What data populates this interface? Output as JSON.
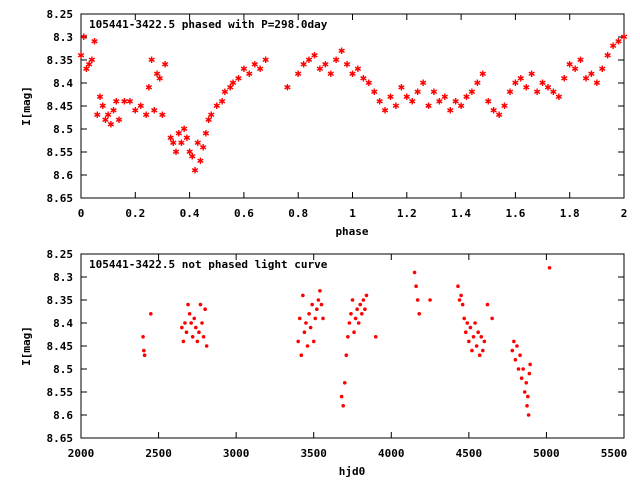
{
  "chart_data": [
    {
      "type": "scatter",
      "title": "105441-3422.5 phased with P=298.0day",
      "xlabel": "phase",
      "ylabel": "I[mag]",
      "xlim": [
        0,
        2
      ],
      "ylim": [
        8.25,
        8.65
      ],
      "y_inverted": true,
      "grid": false,
      "legend": "none",
      "marker": "star",
      "color": "#ff0000",
      "xticks": [
        "0",
        "0.2",
        "0.4",
        "0.6",
        "0.8",
        "1",
        "1.2",
        "1.4",
        "1.6",
        "1.8",
        "2"
      ],
      "yticks": [
        "8.25",
        "8.3",
        "8.35",
        "8.4",
        "8.45",
        "8.5",
        "8.55",
        "8.6",
        "8.65"
      ],
      "points": [
        [
          0.0,
          8.34
        ],
        [
          0.01,
          8.3
        ],
        [
          0.02,
          8.37
        ],
        [
          0.03,
          8.36
        ],
        [
          0.04,
          8.35
        ],
        [
          0.05,
          8.31
        ],
        [
          0.06,
          8.47
        ],
        [
          0.07,
          8.43
        ],
        [
          0.08,
          8.45
        ],
        [
          0.09,
          8.48
        ],
        [
          0.1,
          8.47
        ],
        [
          0.11,
          8.49
        ],
        [
          0.12,
          8.46
        ],
        [
          0.13,
          8.44
        ],
        [
          0.14,
          8.48
        ],
        [
          0.16,
          8.44
        ],
        [
          0.18,
          8.44
        ],
        [
          0.2,
          8.46
        ],
        [
          0.22,
          8.45
        ],
        [
          0.24,
          8.47
        ],
        [
          0.25,
          8.41
        ],
        [
          0.26,
          8.35
        ],
        [
          0.27,
          8.46
        ],
        [
          0.28,
          8.38
        ],
        [
          0.29,
          8.39
        ],
        [
          0.3,
          8.47
        ],
        [
          0.31,
          8.36
        ],
        [
          0.33,
          8.52
        ],
        [
          0.34,
          8.53
        ],
        [
          0.35,
          8.55
        ],
        [
          0.36,
          8.51
        ],
        [
          0.37,
          8.53
        ],
        [
          0.38,
          8.5
        ],
        [
          0.39,
          8.52
        ],
        [
          0.4,
          8.55
        ],
        [
          0.41,
          8.56
        ],
        [
          0.42,
          8.59
        ],
        [
          0.43,
          8.53
        ],
        [
          0.44,
          8.57
        ],
        [
          0.45,
          8.54
        ],
        [
          0.46,
          8.51
        ],
        [
          0.47,
          8.48
        ],
        [
          0.48,
          8.47
        ],
        [
          0.5,
          8.45
        ],
        [
          0.52,
          8.44
        ],
        [
          0.53,
          8.42
        ],
        [
          0.55,
          8.41
        ],
        [
          0.56,
          8.4
        ],
        [
          0.58,
          8.39
        ],
        [
          0.6,
          8.37
        ],
        [
          0.62,
          8.38
        ],
        [
          0.64,
          8.36
        ],
        [
          0.66,
          8.37
        ],
        [
          0.68,
          8.35
        ],
        [
          0.76,
          8.41
        ],
        [
          0.8,
          8.38
        ],
        [
          0.82,
          8.36
        ],
        [
          0.84,
          8.35
        ],
        [
          0.86,
          8.34
        ],
        [
          0.88,
          8.37
        ],
        [
          0.9,
          8.36
        ],
        [
          0.92,
          8.38
        ],
        [
          0.94,
          8.35
        ],
        [
          0.96,
          8.33
        ],
        [
          0.98,
          8.36
        ],
        [
          1.0,
          8.38
        ],
        [
          1.02,
          8.37
        ],
        [
          1.04,
          8.39
        ],
        [
          1.06,
          8.4
        ],
        [
          1.08,
          8.42
        ],
        [
          1.1,
          8.44
        ],
        [
          1.12,
          8.46
        ],
        [
          1.14,
          8.43
        ],
        [
          1.16,
          8.45
        ],
        [
          1.18,
          8.41
        ],
        [
          1.2,
          8.43
        ],
        [
          1.22,
          8.44
        ],
        [
          1.24,
          8.42
        ],
        [
          1.26,
          8.4
        ],
        [
          1.28,
          8.45
        ],
        [
          1.3,
          8.42
        ],
        [
          1.32,
          8.44
        ],
        [
          1.34,
          8.43
        ],
        [
          1.36,
          8.46
        ],
        [
          1.38,
          8.44
        ],
        [
          1.4,
          8.45
        ],
        [
          1.42,
          8.43
        ],
        [
          1.44,
          8.42
        ],
        [
          1.46,
          8.4
        ],
        [
          1.48,
          8.38
        ],
        [
          1.5,
          8.44
        ],
        [
          1.52,
          8.46
        ],
        [
          1.54,
          8.47
        ],
        [
          1.56,
          8.45
        ],
        [
          1.58,
          8.42
        ],
        [
          1.6,
          8.4
        ],
        [
          1.62,
          8.39
        ],
        [
          1.64,
          8.41
        ],
        [
          1.66,
          8.38
        ],
        [
          1.68,
          8.42
        ],
        [
          1.7,
          8.4
        ],
        [
          1.72,
          8.41
        ],
        [
          1.74,
          8.42
        ],
        [
          1.76,
          8.43
        ],
        [
          1.78,
          8.39
        ],
        [
          1.8,
          8.36
        ],
        [
          1.82,
          8.37
        ],
        [
          1.84,
          8.35
        ],
        [
          1.86,
          8.39
        ],
        [
          1.88,
          8.38
        ],
        [
          1.9,
          8.4
        ],
        [
          1.92,
          8.37
        ],
        [
          1.94,
          8.34
        ],
        [
          1.96,
          8.32
        ],
        [
          1.98,
          8.31
        ],
        [
          2.0,
          8.3
        ]
      ]
    },
    {
      "type": "scatter",
      "title": "105441-3422.5 not phased light curve",
      "xlabel": "hjd0",
      "ylabel": "I[mag]",
      "xlim": [
        2000,
        5500
      ],
      "ylim": [
        8.25,
        8.65
      ],
      "y_inverted": true,
      "grid": false,
      "legend": "none",
      "marker": "dot",
      "color": "#ff0000",
      "xticks": [
        "2000",
        "2500",
        "3000",
        "3500",
        "4000",
        "4500",
        "5000",
        "5500"
      ],
      "yticks": [
        "8.25",
        "8.3",
        "8.35",
        "8.4",
        "8.45",
        "8.5",
        "8.55",
        "8.6",
        "8.65"
      ],
      "points": [
        [
          2400,
          8.43
        ],
        [
          2405,
          8.46
        ],
        [
          2410,
          8.47
        ],
        [
          2450,
          8.38
        ],
        [
          2650,
          8.41
        ],
        [
          2660,
          8.44
        ],
        [
          2670,
          8.4
        ],
        [
          2680,
          8.42
        ],
        [
          2690,
          8.36
        ],
        [
          2700,
          8.38
        ],
        [
          2710,
          8.4
        ],
        [
          2720,
          8.43
        ],
        [
          2730,
          8.39
        ],
        [
          2740,
          8.41
        ],
        [
          2750,
          8.44
        ],
        [
          2760,
          8.42
        ],
        [
          2770,
          8.36
        ],
        [
          2780,
          8.4
        ],
        [
          2790,
          8.43
        ],
        [
          2800,
          8.37
        ],
        [
          2810,
          8.45
        ],
        [
          3400,
          8.44
        ],
        [
          3410,
          8.39
        ],
        [
          3420,
          8.47
        ],
        [
          3430,
          8.34
        ],
        [
          3440,
          8.42
        ],
        [
          3450,
          8.4
        ],
        [
          3460,
          8.45
        ],
        [
          3470,
          8.38
        ],
        [
          3480,
          8.41
        ],
        [
          3490,
          8.36
        ],
        [
          3500,
          8.44
        ],
        [
          3510,
          8.39
        ],
        [
          3520,
          8.37
        ],
        [
          3530,
          8.35
        ],
        [
          3540,
          8.33
        ],
        [
          3550,
          8.36
        ],
        [
          3560,
          8.39
        ],
        [
          3680,
          8.56
        ],
        [
          3690,
          8.58
        ],
        [
          3700,
          8.53
        ],
        [
          3710,
          8.47
        ],
        [
          3720,
          8.43
        ],
        [
          3730,
          8.4
        ],
        [
          3740,
          8.38
        ],
        [
          3750,
          8.35
        ],
        [
          3760,
          8.42
        ],
        [
          3770,
          8.39
        ],
        [
          3780,
          8.37
        ],
        [
          3790,
          8.4
        ],
        [
          3800,
          8.36
        ],
        [
          3810,
          8.38
        ],
        [
          3820,
          8.35
        ],
        [
          3830,
          8.37
        ],
        [
          3840,
          8.34
        ],
        [
          3900,
          8.43
        ],
        [
          4150,
          8.29
        ],
        [
          4160,
          8.32
        ],
        [
          4170,
          8.35
        ],
        [
          4180,
          8.38
        ],
        [
          4250,
          8.35
        ],
        [
          4430,
          8.32
        ],
        [
          4440,
          8.35
        ],
        [
          4450,
          8.34
        ],
        [
          4460,
          8.36
        ],
        [
          4470,
          8.39
        ],
        [
          4480,
          8.42
        ],
        [
          4490,
          8.4
        ],
        [
          4500,
          8.44
        ],
        [
          4510,
          8.41
        ],
        [
          4520,
          8.46
        ],
        [
          4530,
          8.43
        ],
        [
          4540,
          8.4
        ],
        [
          4550,
          8.45
        ],
        [
          4560,
          8.42
        ],
        [
          4570,
          8.47
        ],
        [
          4580,
          8.43
        ],
        [
          4590,
          8.46
        ],
        [
          4600,
          8.44
        ],
        [
          4620,
          8.36
        ],
        [
          4650,
          8.39
        ],
        [
          4780,
          8.46
        ],
        [
          4790,
          8.44
        ],
        [
          4800,
          8.48
        ],
        [
          4810,
          8.45
        ],
        [
          4820,
          8.5
        ],
        [
          4830,
          8.47
        ],
        [
          4840,
          8.52
        ],
        [
          4850,
          8.5
        ],
        [
          4860,
          8.55
        ],
        [
          4870,
          8.53
        ],
        [
          4875,
          8.58
        ],
        [
          4880,
          8.56
        ],
        [
          4885,
          8.6
        ],
        [
          4890,
          8.51
        ],
        [
          4895,
          8.49
        ],
        [
          5020,
          8.28
        ]
      ]
    }
  ]
}
